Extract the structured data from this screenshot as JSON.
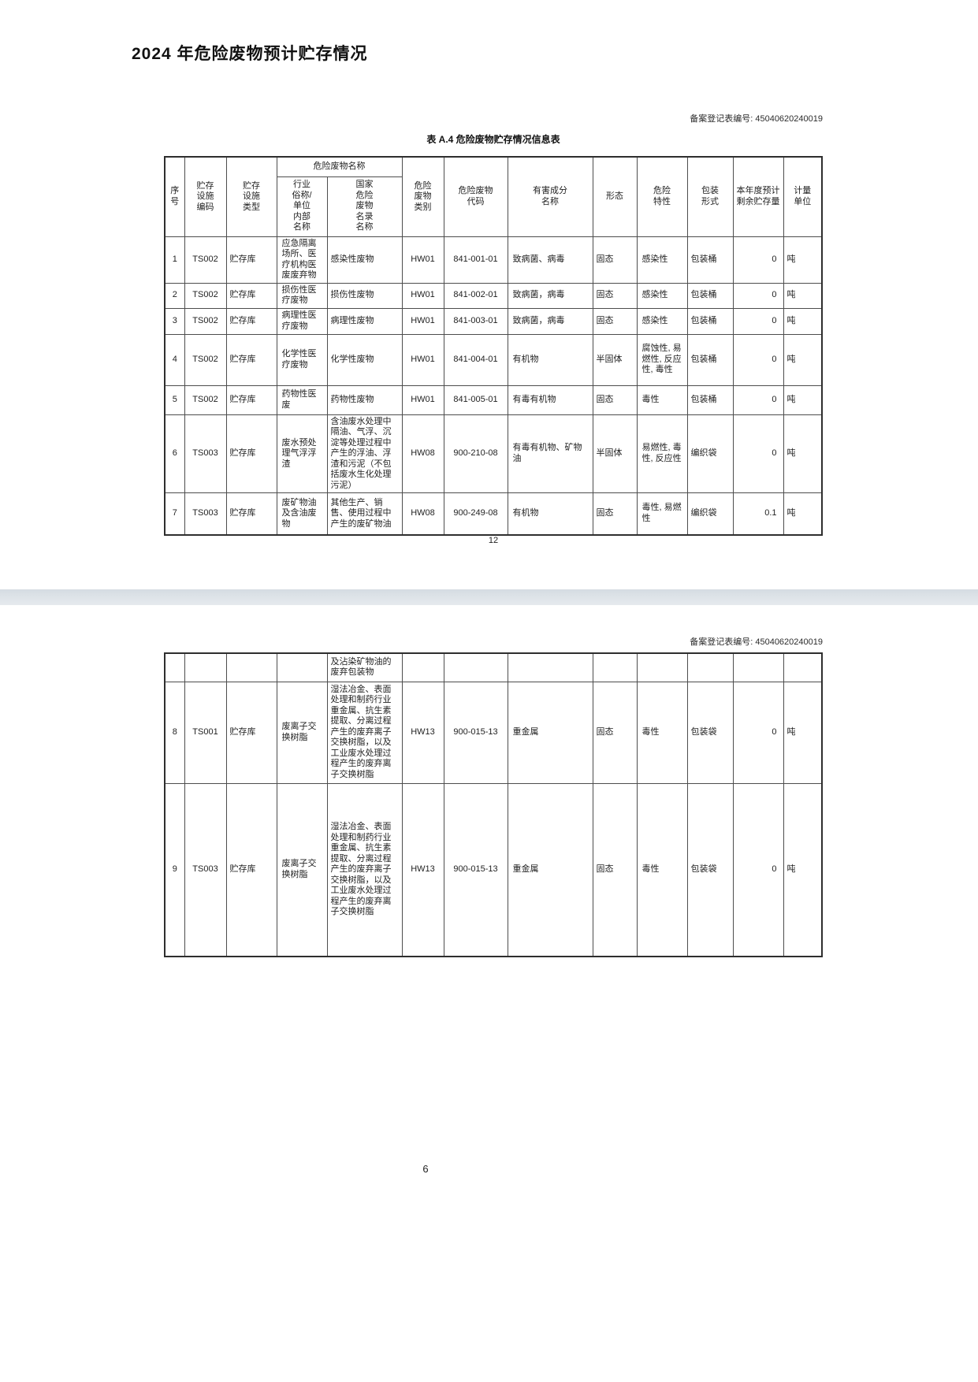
{
  "document": {
    "title": "2024 年危险废物预计贮存情况",
    "outer_page_number": "6"
  },
  "page1": {
    "registry_no_label": "备案登记表编号: 45040620240019",
    "table_title": "表 A.4 危险废物贮存情况信息表",
    "inner_page_number": "12"
  },
  "page2": {
    "registry_no_label": "备案登记表编号: 45040620240019"
  },
  "table": {
    "header": {
      "seq": "序\n号",
      "facility_code": "贮存\n设施\n编码",
      "facility_type": "贮存\n设施\n类型",
      "waste_name_group": "危险废物名称",
      "industry_name": "行业\n俗称/\n单位\n内部\n名称",
      "national_name": "国家\n危险\n废物\n名录\n名称",
      "waste_category": "危险\n废物\n类别",
      "waste_code": "危险废物\n代码",
      "harmful_component": "有害成分\n名称",
      "form": "形态",
      "hazard_property": "危险\n特性",
      "packaging": "包装\n形式",
      "expected_remaining": "本年度预计\n剩余贮存量",
      "unit": "计量\n单位"
    },
    "rows_page1": [
      [
        "1",
        "TS002",
        "贮存库",
        "应急隔离场所、医疗机构医废废弃物",
        "感染性废物",
        "HW01",
        "841-001-01",
        "致病菌、病毒",
        "固态",
        "感染性",
        "包装桶",
        "0",
        "吨"
      ],
      [
        "2",
        "TS002",
        "贮存库",
        "损伤性医疗废物",
        "损伤性废物",
        "HW01",
        "841-002-01",
        "致病菌，病毒",
        "固态",
        "感染性",
        "包装桶",
        "0",
        "吨"
      ],
      [
        "3",
        "TS002",
        "贮存库",
        "病理性医疗废物",
        "病理性废物",
        "HW01",
        "841-003-01",
        "致病菌，病毒",
        "固态",
        "感染性",
        "包装桶",
        "0",
        "吨"
      ],
      [
        "4",
        "TS002",
        "贮存库",
        "化学性医疗废物",
        "化学性废物",
        "HW01",
        "841-004-01",
        "有机物",
        "半固体",
        "腐蚀性, 易燃性, 反应性, 毒性",
        "包装桶",
        "0",
        "吨"
      ],
      [
        "5",
        "TS002",
        "贮存库",
        "药物性医废",
        "药物性废物",
        "HW01",
        "841-005-01",
        "有毒有机物",
        "固态",
        "毒性",
        "包装桶",
        "0",
        "吨"
      ],
      [
        "6",
        "TS003",
        "贮存库",
        "废水预处理气浮浮渣",
        "含油废水处理中隔油、气浮、沉淀等处理过程中产生的浮油、浮渣和污泥（不包括废水生化处理污泥）",
        "HW08",
        "900-210-08",
        "有毒有机物、矿物油",
        "半固体",
        "易燃性, 毒性, 反应性",
        "编织袋",
        "0",
        "吨"
      ],
      [
        "7",
        "TS003",
        "贮存库",
        "废矿物油及含油废物",
        "其他生产、销售、使用过程中产生的废矿物油",
        "HW08",
        "900-249-08",
        "有机物",
        "固态",
        "毒性, 易燃性",
        "编织袋",
        "0.1",
        "吨"
      ]
    ],
    "rows_page2": [
      [
        "",
        "",
        "",
        "",
        "及沾染矿物油的废弃包装物",
        "",
        "",
        "",
        "",
        "",
        "",
        "",
        ""
      ],
      [
        "8",
        "TS001",
        "贮存库",
        "废离子交换树脂",
        "湿法冶金、表面处理和制药行业重金属、抗生素提取、分离过程产生的废弃离子交换树脂，以及工业废水处理过程产生的废弃离子交换树脂",
        "HW13",
        "900-015-13",
        "重金属",
        "固态",
        "毒性",
        "包装袋",
        "0",
        "吨"
      ],
      [
        "9",
        "TS003",
        "贮存库",
        "废离子交换树脂",
        "湿法冶金、表面处理和制药行业重金属、抗生素提取、分离过程产生的废弃离子交换树脂，以及工业废水处理过程产生的废弃离子交换树脂",
        "HW13",
        "900-015-13",
        "重金属",
        "固态",
        "毒性",
        "包装袋",
        "0",
        "吨"
      ]
    ]
  }
}
